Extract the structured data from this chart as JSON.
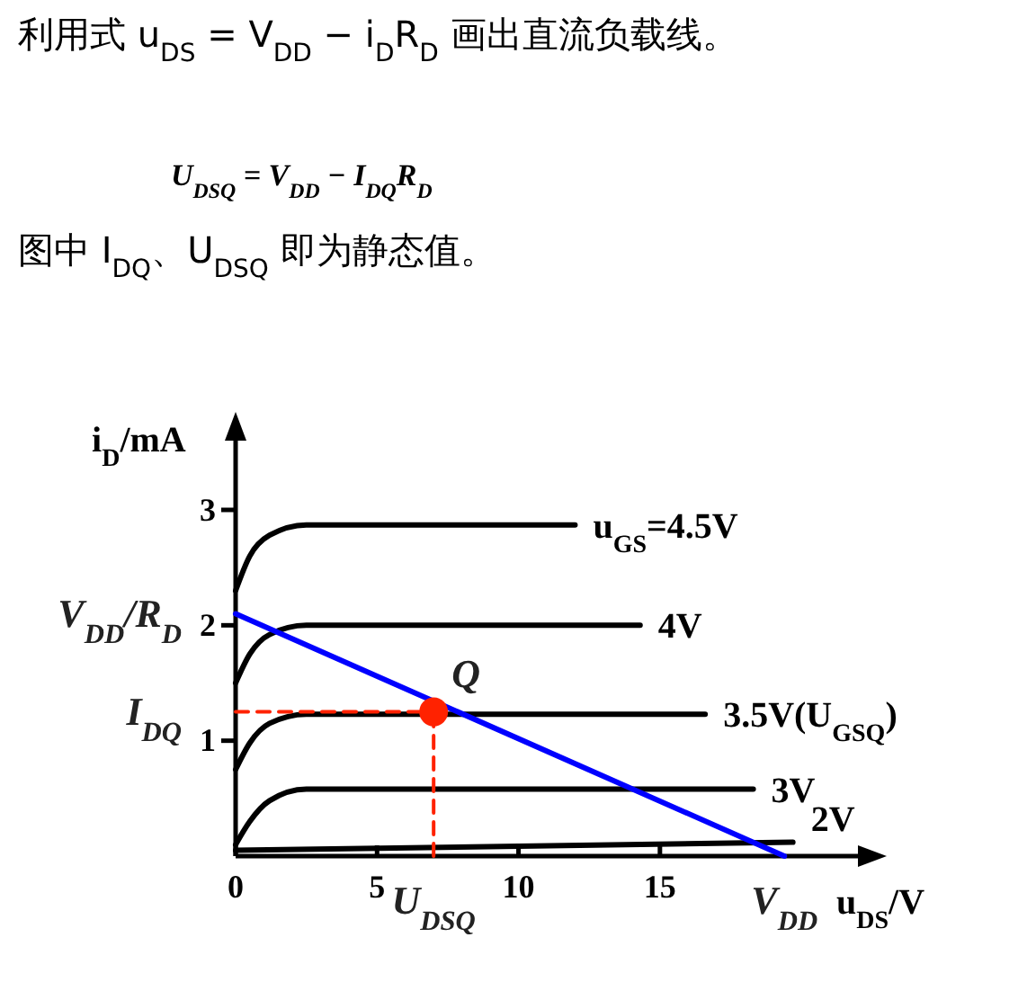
{
  "chart_data": {
    "type": "line",
    "title": "利用式 u$_{DS}$ = V$_{DD}$ − i$_{D}$R$_{D}$ 画出直流负载线。",
    "subtitle": "U$_{DSQ}$ = V$_{DD}$ − I$_{DQ}$R$_{D}$",
    "xlabel": "u$_{DS}$/V",
    "ylabel": "i$_{D}$/mA",
    "xlim": [
      0,
      22
    ],
    "ylim": [
      0,
      3.6
    ],
    "xticks": [
      0,
      5,
      10,
      15
    ],
    "yticks": [
      1,
      2,
      3
    ],
    "annotations": [
      "图中 I$_{DQ}$、U$_{DSQ}$ 即为静态值。",
      {
        "text": "V$_{DD}$/R$_{D}$",
        "x": 0,
        "y": 2.1
      },
      {
        "text": "I$_{DQ}$",
        "x": 0,
        "y": 1.25
      },
      {
        "text": "Q",
        "x": 7,
        "y": 1.25
      },
      {
        "text": "U$_{DSQ}$",
        "x": 7,
        "y": 0
      },
      {
        "text": "V$_{DD}$",
        "x": 19.4,
        "y": 0
      }
    ],
    "series": [
      {
        "name": "u$_{GS}$=4.5V",
        "color": "#000000",
        "x": [
          0,
          0.5,
          1.2,
          2.5,
          12
        ],
        "values": [
          2.3,
          2.6,
          2.78,
          2.87,
          2.87
        ]
      },
      {
        "name": "4V",
        "color": "#000000",
        "x": [
          0,
          0.5,
          1.2,
          2.5,
          14.3
        ],
        "values": [
          1.5,
          1.75,
          1.92,
          2.0,
          2.0
        ]
      },
      {
        "name": "3.5V(U$_{GSQ}$)",
        "color": "#000000",
        "x": [
          0,
          0.5,
          1.2,
          2.5,
          16.6
        ],
        "values": [
          0.75,
          0.98,
          1.15,
          1.23,
          1.23
        ]
      },
      {
        "name": "3V",
        "color": "#000000",
        "x": [
          0,
          0.5,
          1.2,
          2.5,
          18.3
        ],
        "values": [
          0.1,
          0.3,
          0.48,
          0.58,
          0.58
        ]
      },
      {
        "name": "2V",
        "color": "#000000",
        "x": [
          0,
          19.7
        ],
        "values": [
          0.05,
          0.12
        ]
      },
      {
        "color": "#0000ff",
        "x": [
          0,
          19.4
        ],
        "values": [
          2.1,
          0
        ]
      },
      {
        "color": "#ff2200",
        "x": [
          0,
          7
        ],
        "values": [
          1.25,
          1.25
        ],
        "line_style": "dashed"
      },
      {
        "color": "#ff2200",
        "x": [
          7,
          7
        ],
        "values": [
          0,
          1.25
        ],
        "line_style": "dashed"
      },
      {
        "type": "scatter",
        "color": "#ff2200",
        "x": [
          7
        ],
        "values": [
          1.25
        ],
        "marker": "circle"
      }
    ]
  }
}
